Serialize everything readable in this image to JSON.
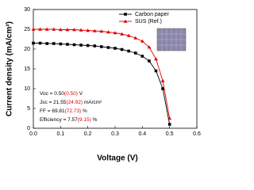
{
  "chart_data": {
    "type": "line",
    "xlabel": "Voltage (V)",
    "ylabel": "Current density (mA/cm²)",
    "x": [
      0,
      0.025,
      0.05,
      0.075,
      0.1,
      0.125,
      0.15,
      0.175,
      0.2,
      0.225,
      0.25,
      0.275,
      0.3,
      0.325,
      0.35,
      0.375,
      0.4,
      0.425,
      0.45,
      0.475,
      0.5
    ],
    "series": [
      {
        "name": "Carbon paper",
        "color": "#000000",
        "marker": "square",
        "values": [
          21.5,
          21.5,
          21.4,
          21.4,
          21.3,
          21.2,
          21.1,
          21.0,
          20.9,
          20.8,
          20.6,
          20.4,
          20.2,
          19.9,
          19.5,
          19.0,
          18.2,
          17.0,
          14.5,
          10.0,
          1.0
        ]
      },
      {
        "name": "SUS (Ref.)",
        "color": "#e00000",
        "marker": "triangle",
        "values": [
          25.0,
          25.0,
          25.0,
          25.0,
          24.9,
          24.9,
          24.9,
          24.8,
          24.7,
          24.6,
          24.5,
          24.3,
          24.1,
          23.8,
          23.4,
          22.8,
          22.0,
          20.5,
          17.5,
          12.0,
          2.5
        ]
      }
    ],
    "xlim": [
      0,
      0.6
    ],
    "xticks": [
      {
        "value": 0,
        "label": "0.0"
      },
      0.1,
      0.2,
      0.3,
      0.4,
      0.5,
      0.6
    ],
    "ylim": [
      0,
      30
    ],
    "yticks": [
      0,
      5,
      10,
      15,
      20,
      25,
      30
    ],
    "legend": "top-right",
    "annotation_colors": [
      "#000000",
      "#e00000",
      "#000000"
    ],
    "annotations": [
      [
        "Voc = 0.50",
        "(0.50)",
        " V"
      ],
      [
        "Jsc = 21.55",
        "(24.92)",
        " mA/cm²"
      ],
      [
        "FF = 69.81",
        "(72.73)",
        " %"
      ],
      [
        "Efficiency = 7.57",
        "(9.15)",
        " %"
      ]
    ]
  }
}
